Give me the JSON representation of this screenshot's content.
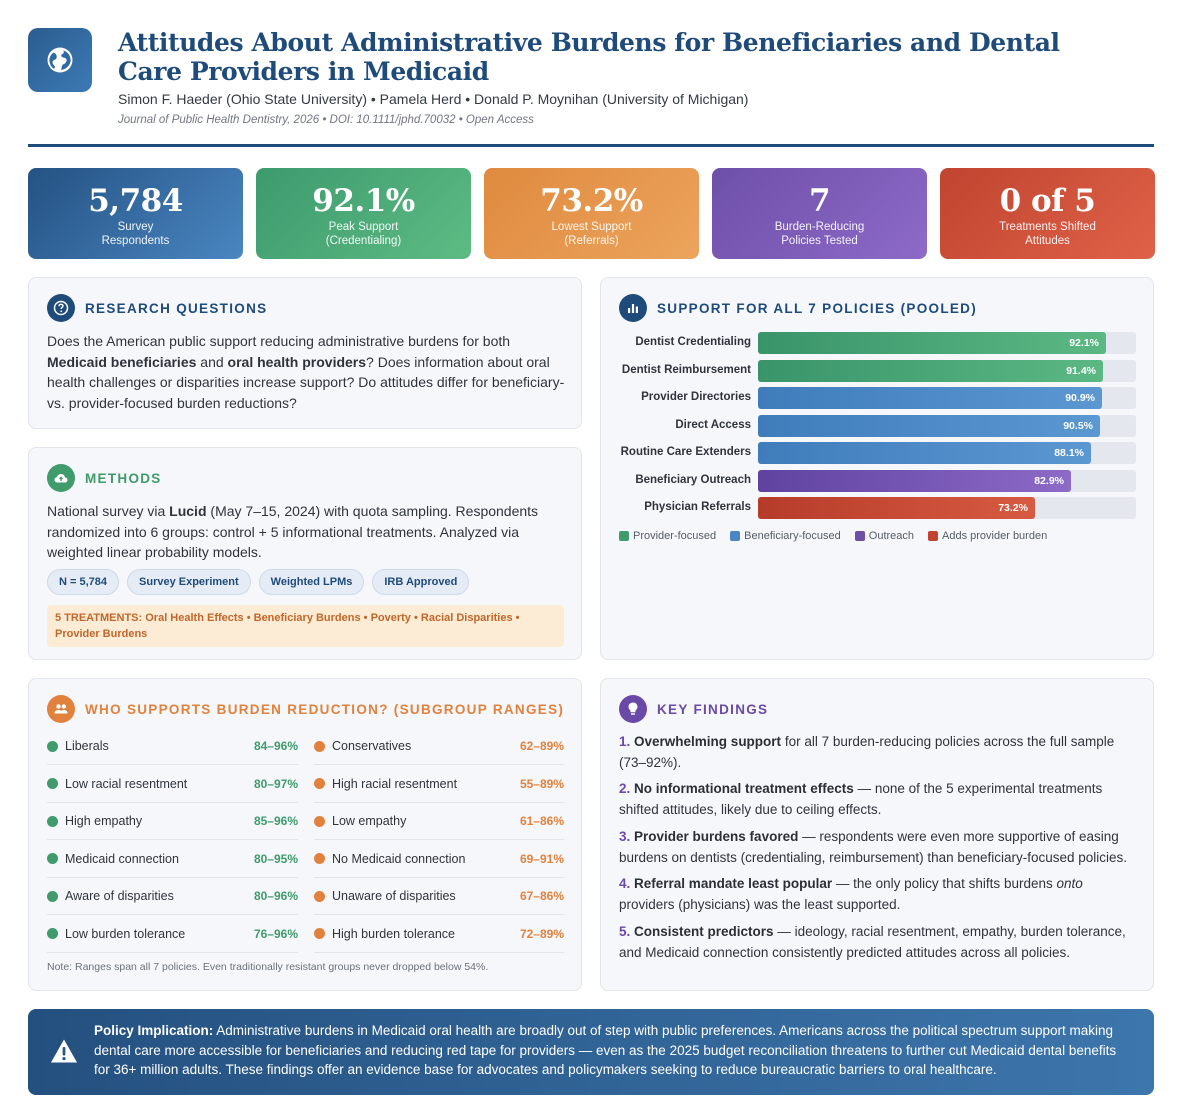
{
  "header": {
    "title": "Attitudes About Administrative Burdens for Beneficiaries and Dental Care Providers in Medicaid",
    "authors": "Simon F. Haeder (Ohio State University) • Pamela Herd • Donald P. Moynihan (University of Michigan)",
    "journal": "Journal of Public Health Dentistry, 2026 • DOI: 10.1111/jphd.70032 • Open Access",
    "logo_icon": "globe-icon"
  },
  "stats": [
    {
      "value": "5,784",
      "label1": "Survey",
      "label2": "Respondents"
    },
    {
      "value": "92.1%",
      "label1": "Peak Support",
      "label2": "(Credentialing)"
    },
    {
      "value": "73.2%",
      "label1": "Lowest Support",
      "label2": "(Referrals)"
    },
    {
      "value": "7",
      "label1": "Burden-Reducing",
      "label2": "Policies Tested"
    },
    {
      "value": "0 of 5",
      "label1": "Treatments Shifted",
      "label2": "Attitudes"
    }
  ],
  "research": {
    "title": "RESEARCH QUESTIONS",
    "p1": "Does the American public support reducing administrative burdens for both ",
    "b1": "Medicaid beneficiaries",
    "p2": " and ",
    "b2": "oral health providers",
    "p3": "? Does information about oral health challenges or disparities increase support? Do attitudes differ for beneficiary- vs. provider-focused burden reductions?"
  },
  "methods": {
    "title": "METHODS",
    "p1": "National survey via ",
    "b1": "Lucid",
    "p2": " (May 7–15, 2024) with quota sampling. Respondents randomized into 6 groups: control + 5 informational treatments. Analyzed via weighted linear probability models.",
    "tags": [
      "N = 5,784",
      "Survey Experiment",
      "Weighted LPMs",
      "IRB Approved"
    ],
    "treatments": "5 TREATMENTS: Oral Health Effects • Beneficiary Burdens • Poverty • Racial Disparities • Provider Burdens"
  },
  "chart_data": {
    "type": "bar",
    "title": "SUPPORT FOR ALL 7 POLICIES (POOLED)",
    "categories": [
      "Dentist Credentialing",
      "Dentist Reimbursement",
      "Provider Directories",
      "Direct Access",
      "Routine Care Extenders",
      "Beneficiary Outreach",
      "Physician Referrals"
    ],
    "values": [
      92.1,
      91.4,
      90.9,
      90.5,
      88.1,
      82.9,
      73.2
    ],
    "value_labels": [
      "92.1%",
      "91.4%",
      "90.9%",
      "90.5%",
      "88.1%",
      "82.9%",
      "73.2%"
    ],
    "groups": [
      "provider",
      "provider",
      "beneficiary",
      "beneficiary",
      "beneficiary",
      "outreach",
      "burden"
    ],
    "xlim": [
      0,
      100
    ],
    "legend": [
      {
        "key": "provider",
        "label": "Provider-focused",
        "color": "#3f9a6c"
      },
      {
        "key": "beneficiary",
        "label": "Beneficiary-focused",
        "color": "#4a86c1"
      },
      {
        "key": "outreach",
        "label": "Outreach",
        "color": "#6e4fa8"
      },
      {
        "key": "burden",
        "label": "Adds provider burden",
        "color": "#c0442f"
      }
    ]
  },
  "subgroups": {
    "title": "WHO SUPPORTS BURDEN REDUCTION? (SUBGROUP RANGES)",
    "left": [
      {
        "label": "Liberals",
        "range": "84–96%"
      },
      {
        "label": "Low racial resentment",
        "range": "80–97%"
      },
      {
        "label": "High empathy",
        "range": "85–96%"
      },
      {
        "label": "Medicaid connection",
        "range": "80–95%"
      },
      {
        "label": "Aware of disparities",
        "range": "80–96%"
      },
      {
        "label": "Low burden tolerance",
        "range": "76–96%"
      }
    ],
    "right": [
      {
        "label": "Conservatives",
        "range": "62–89%"
      },
      {
        "label": "High racial resentment",
        "range": "55–89%"
      },
      {
        "label": "Low empathy",
        "range": "61–86%"
      },
      {
        "label": "No Medicaid connection",
        "range": "69–91%"
      },
      {
        "label": "Unaware of disparities",
        "range": "67–86%"
      },
      {
        "label": "High burden tolerance",
        "range": "72–89%"
      }
    ],
    "note": "Note: Ranges span all 7 policies. Even traditionally resistant groups never dropped below 54%.",
    "colors": {
      "left": "#3f9a6c",
      "right": "#e0823d"
    }
  },
  "findings": {
    "title": "KEY FINDINGS",
    "items": [
      {
        "num": "1.",
        "key": "Overwhelming support",
        "pre": "",
        "em": "",
        "post": " for all 7 burden-reducing policies across the full sample (73–92%)."
      },
      {
        "num": "2.",
        "key": "No informational treatment effects",
        "pre": "",
        "em": "",
        "post": " — none of the 5 experimental treatments shifted attitudes, likely due to ceiling effects."
      },
      {
        "num": "3.",
        "key": "Provider burdens favored",
        "pre": "",
        "em": "",
        "post": " — respondents were even more supportive of easing burdens on dentists (credentialing, reimbursement) than beneficiary-focused policies."
      },
      {
        "num": "4.",
        "key": "Referral mandate least popular",
        "pre": " — the only policy that shifts burdens ",
        "em": "onto",
        "post": " providers (physicians) was the least supported."
      },
      {
        "num": "5.",
        "key": "Consistent predictors",
        "pre": "",
        "em": "",
        "post": " — ideology, racial resentment, empathy, burden tolerance, and Medicaid connection consistently predicted attitudes across all policies."
      }
    ]
  },
  "implication": {
    "label": "Policy Implication:",
    "text": " Administrative burdens in Medicaid oral health are broadly out of step with public preferences. Americans across the political spectrum support making dental care more accessible for beneficiaries and reducing red tape for providers — even as the 2025 budget reconciliation threatens to further cut Medicaid dental benefits for 36+ million adults. These findings offer an evidence base for advocates and policymakers seeking to reduce bureaucratic barriers to oral healthcare."
  }
}
